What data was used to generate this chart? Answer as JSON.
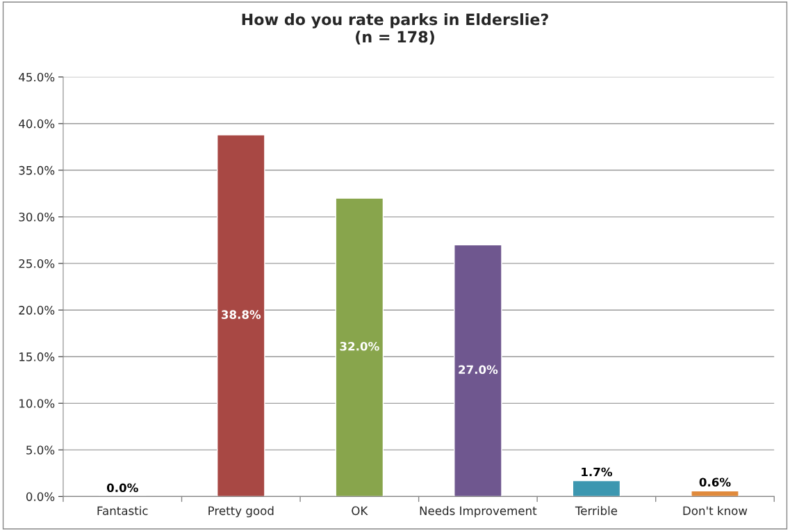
{
  "chart_data": {
    "type": "bar",
    "title": "How do you rate parks in Elderslie?\n(n = 178)",
    "categories": [
      "Fantastic",
      "Pretty good",
      "OK",
      "Needs Improvement",
      "Terrible",
      "Don't know"
    ],
    "values": [
      0.0,
      38.8,
      32.0,
      27.0,
      1.7,
      0.6
    ],
    "colors": [
      null,
      "#a84844",
      "#88a54c",
      "#6f578f",
      "#3c97b0",
      "#e08a3c"
    ],
    "value_labels": [
      "0.0%",
      "38.8%",
      "32.0%",
      "27.0%",
      "1.7%",
      "0.6%"
    ],
    "ylim": [
      0,
      45
    ],
    "yticks": [
      {
        "value": 0,
        "label": "0.0%"
      },
      {
        "value": 5,
        "label": "5.0%"
      },
      {
        "value": 10,
        "label": "10.0%"
      },
      {
        "value": 15,
        "label": "15.0%"
      },
      {
        "value": 20,
        "label": "20.0%"
      },
      {
        "value": 25,
        "label": "25.0%"
      },
      {
        "value": 30,
        "label": "30.0%"
      },
      {
        "value": 35,
        "label": "35.0%"
      },
      {
        "value": 40,
        "label": "40.0%"
      },
      {
        "value": 45,
        "label": "45.0%"
      }
    ],
    "grid": "y",
    "legend": false
  }
}
